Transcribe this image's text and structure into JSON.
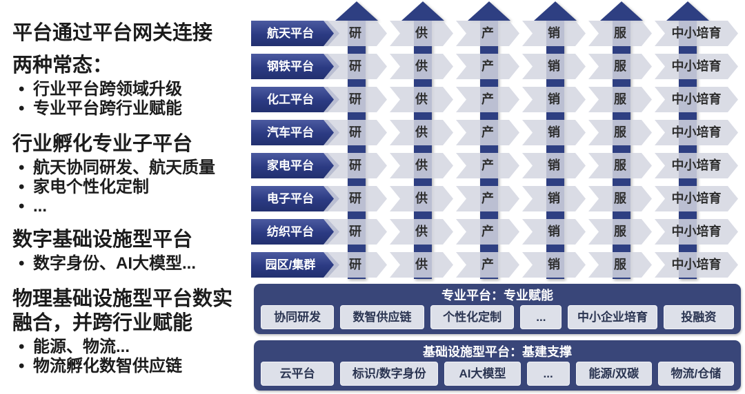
{
  "left_panel": {
    "title": "平台通过平台网关连接",
    "sections": [
      {
        "heading": "两种常态：",
        "bullets": [
          "行业平台跨领域升级",
          "专业平台跨行业赋能"
        ]
      },
      {
        "heading": "行业孵化专业子平台",
        "bullets": [
          "航天协同研发、航天质量",
          "家电个性化定制",
          "..."
        ]
      },
      {
        "heading": "数字基础设施型平台",
        "bullets": [
          "数字身份、AI大模型..."
        ]
      },
      {
        "heading": "物理基础设施型平台数实融合，并跨行业赋能",
        "bullets": [
          "能源、物流...",
          "物流孵化数智供应链"
        ]
      }
    ]
  },
  "matrix": {
    "rows": [
      "航天平台",
      "钢铁平台",
      "化工平台",
      "汽车平台",
      "家电平台",
      "电子平台",
      "纺织平台",
      "园区/集群"
    ],
    "stages": [
      "研",
      "供",
      "产",
      "销",
      "服",
      "中小培育"
    ],
    "up_arrow_columns": 6
  },
  "bottom_sections": [
    {
      "title": "专业平台：专业赋能",
      "items": [
        "协同研发",
        "数智供应链",
        "个性化定制",
        "...",
        "中小企业培育",
        "投融资"
      ]
    },
    {
      "title": "基础设施型平台：基建支撑",
      "items": [
        "云平台",
        "标识/数字身份",
        "AI大模型",
        "...",
        "能源/双碳",
        "物流/仓储"
      ]
    }
  ],
  "colors": {
    "navy": "#2e3f82",
    "band_gray": "#d3d6e1",
    "section_bg": "#394679",
    "item_bg": "#dde0e9",
    "item_text": "#2b3552",
    "label_gradient_top": "#4b5aa0",
    "label_gradient_bottom": "#22306f"
  }
}
